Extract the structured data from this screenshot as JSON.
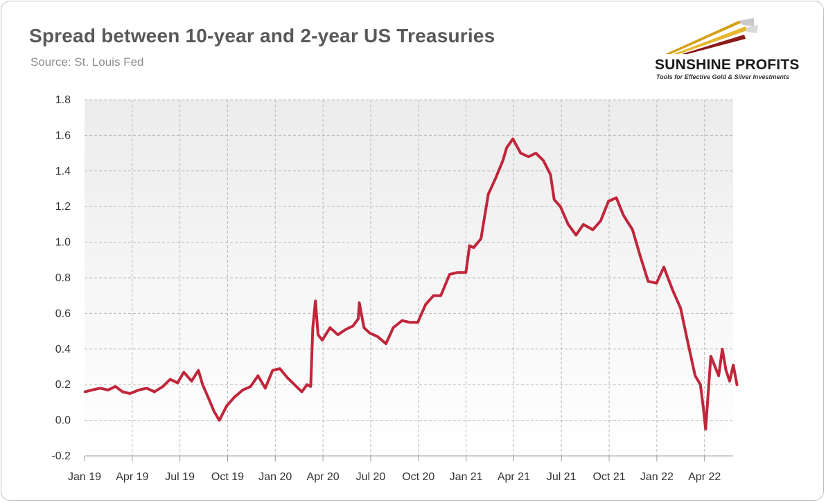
{
  "title": "Spread between 10-year and 2-year US Treasuries",
  "subtitle": "Source: St. Louis Fed",
  "logo": {
    "name": "SUNSHINE PROFITS",
    "tagline": "Tools for Effective Gold & Silver Investments"
  },
  "colors": {
    "series": "#c0263a",
    "plot_background_top": "#ececec",
    "plot_background_bottom": "#ffffff",
    "grid": "#b8b8b8",
    "logo_gold": "#d4a017",
    "logo_red": "#8b1a1a"
  },
  "chart_data": {
    "type": "line",
    "title": "Spread between 10-year and 2-year US Treasuries",
    "xlabel": "",
    "ylabel": "",
    "ylim": [
      -0.2,
      1.8
    ],
    "yticks": [
      -0.2,
      0.0,
      0.2,
      0.4,
      0.6,
      0.8,
      1.0,
      1.2,
      1.4,
      1.6,
      1.8
    ],
    "ytick_labels": [
      "-0.2",
      "0.0",
      "0.2",
      "0.4",
      "0.6",
      "0.8",
      "1.0",
      "1.2",
      "1.4",
      "1.6",
      "1.8"
    ],
    "xticks": [
      "Jan 19",
      "Apr 19",
      "Jul 19",
      "Oct 19",
      "Jan 20",
      "Apr 20",
      "Jul 20",
      "Oct 20",
      "Jan 21",
      "Apr 21",
      "Jul 21",
      "Oct 21",
      "Jan 22",
      "Apr 22"
    ],
    "grid": true,
    "legend": "none",
    "series": [
      {
        "x": [
          "2019-01-02",
          "2019-01-15",
          "2019-01-31",
          "2019-02-15",
          "2019-03-01",
          "2019-03-15",
          "2019-03-29",
          "2019-04-15",
          "2019-04-30",
          "2019-05-15",
          "2019-05-31",
          "2019-06-14",
          "2019-06-28",
          "2019-07-10",
          "2019-07-25",
          "2019-08-07",
          "2019-08-15",
          "2019-08-27",
          "2019-09-06",
          "2019-09-16",
          "2019-09-30",
          "2019-10-15",
          "2019-10-31",
          "2019-11-15",
          "2019-11-29",
          "2019-12-13",
          "2019-12-27",
          "2020-01-10",
          "2020-01-24",
          "2020-02-07",
          "2020-02-21",
          "2020-03-02",
          "2020-03-09",
          "2020-03-13",
          "2020-03-18",
          "2020-03-23",
          "2020-03-31",
          "2020-04-15",
          "2020-04-30",
          "2020-05-15",
          "2020-05-29",
          "2020-06-08",
          "2020-06-10",
          "2020-06-19",
          "2020-06-30",
          "2020-07-15",
          "2020-07-31",
          "2020-08-14",
          "2020-08-31",
          "2020-09-15",
          "2020-09-30",
          "2020-10-15",
          "2020-10-30",
          "2020-11-13",
          "2020-11-30",
          "2020-12-15",
          "2020-12-31",
          "2021-01-07",
          "2021-01-15",
          "2021-01-29",
          "2021-02-12",
          "2021-02-26",
          "2021-03-12",
          "2021-03-19",
          "2021-03-31",
          "2021-04-15",
          "2021-04-30",
          "2021-05-14",
          "2021-05-28",
          "2021-06-11",
          "2021-06-18",
          "2021-06-30",
          "2021-07-15",
          "2021-07-30",
          "2021-08-13",
          "2021-08-31",
          "2021-09-15",
          "2021-09-30",
          "2021-10-15",
          "2021-10-29",
          "2021-11-15",
          "2021-11-30",
          "2021-12-15",
          "2021-12-31",
          "2022-01-14",
          "2022-01-31",
          "2022-02-15",
          "2022-02-28",
          "2022-03-15",
          "2022-03-25",
          "2022-03-31",
          "2022-04-04",
          "2022-04-14",
          "2022-04-29",
          "2022-05-06",
          "2022-05-13",
          "2022-05-20",
          "2022-05-27",
          "2022-06-03"
        ],
        "values": [
          0.16,
          0.17,
          0.18,
          0.17,
          0.19,
          0.16,
          0.15,
          0.17,
          0.18,
          0.16,
          0.19,
          0.23,
          0.21,
          0.27,
          0.22,
          0.28,
          0.2,
          0.12,
          0.05,
          0.0,
          0.08,
          0.13,
          0.17,
          0.19,
          0.25,
          0.18,
          0.28,
          0.29,
          0.24,
          0.2,
          0.16,
          0.2,
          0.19,
          0.52,
          0.67,
          0.48,
          0.45,
          0.52,
          0.48,
          0.51,
          0.53,
          0.57,
          0.66,
          0.52,
          0.49,
          0.47,
          0.43,
          0.52,
          0.56,
          0.55,
          0.55,
          0.65,
          0.7,
          0.7,
          0.82,
          0.83,
          0.83,
          0.98,
          0.97,
          1.02,
          1.27,
          1.36,
          1.46,
          1.53,
          1.58,
          1.5,
          1.48,
          1.5,
          1.46,
          1.38,
          1.24,
          1.2,
          1.1,
          1.04,
          1.1,
          1.07,
          1.12,
          1.23,
          1.25,
          1.15,
          1.07,
          0.92,
          0.78,
          0.77,
          0.86,
          0.73,
          0.63,
          0.45,
          0.25,
          0.2,
          0.06,
          -0.05,
          0.36,
          0.25,
          0.4,
          0.28,
          0.22,
          0.31,
          0.2
        ]
      }
    ]
  }
}
